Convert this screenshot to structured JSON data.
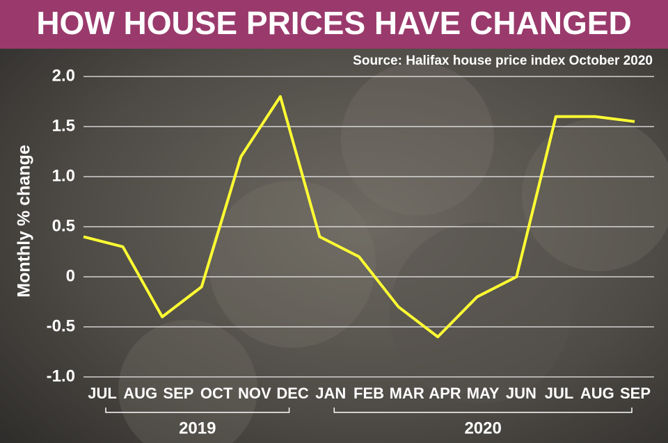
{
  "chart_data": {
    "type": "line",
    "title": "HOW HOUSE PRICES HAVE CHANGED",
    "subtitle": "Source: Halifax house price index October 2020",
    "y_label": "Monthly % change",
    "categories": [
      "JUL",
      "AUG",
      "SEP",
      "OCT",
      "NOV",
      "DEC",
      "JAN",
      "FEB",
      "MAR",
      "APR",
      "MAY",
      "JUN",
      "JUL",
      "AUG",
      "SEP"
    ],
    "year_groups": [
      {
        "label": "2019",
        "count": 6
      },
      {
        "label": "2020",
        "count": 9
      }
    ],
    "values": [
      0.4,
      0.3,
      -0.4,
      -0.1,
      1.2,
      1.8,
      0.4,
      0.2,
      -0.3,
      -0.6,
      -0.2,
      0,
      1.6,
      1.6,
      1.55
    ],
    "color": "#ffff33",
    "ylim": [
      -1.0,
      2.0
    ],
    "yticks": [
      {
        "value": -1.0,
        "label": "-1.0"
      },
      -0.5,
      0,
      0.5,
      {
        "value": 1.0,
        "label": "1.0"
      },
      1.5,
      {
        "value": 2.0,
        "label": "2.0"
      }
    ],
    "grid": true
  }
}
